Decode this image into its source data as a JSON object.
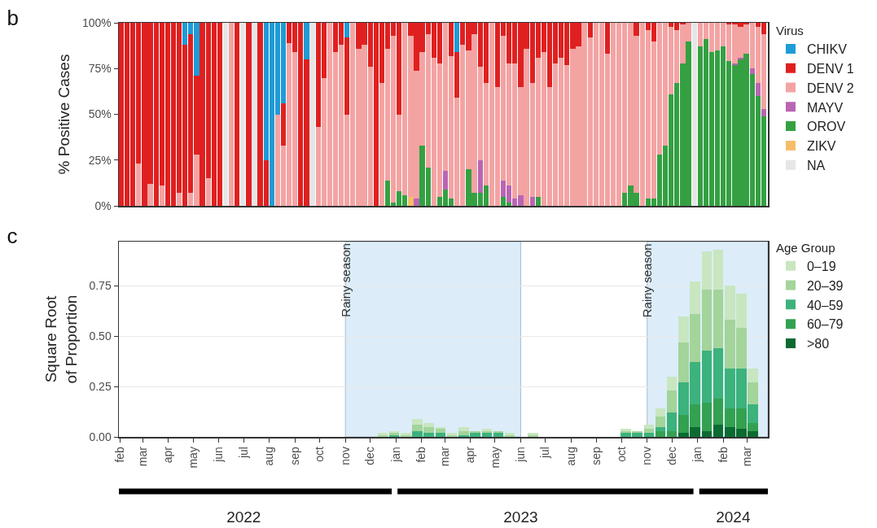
{
  "chart_data": [
    {
      "type": "bar",
      "title": "b",
      "ylabel": "% Positive Cases",
      "legend_title": "Virus",
      "stacked": true,
      "legend": "right",
      "grid": false,
      "tick_labels": "y",
      "xlim": [
        "2022-01-31",
        "2024-03-26"
      ],
      "ylim": [
        0,
        100
      ],
      "yticks": [
        {
          "value": 0,
          "label": "0%"
        },
        {
          "value": 25,
          "label": "25%"
        },
        {
          "value": 50,
          "label": "50%"
        },
        {
          "value": 75,
          "label": "75%"
        },
        {
          "value": 100,
          "label": "100%"
        }
      ],
      "x": [
        "2022-02-03",
        "2022-02-10",
        "2022-02-17",
        "2022-02-24",
        "2022-03-03",
        "2022-03-10",
        "2022-03-17",
        "2022-03-24",
        "2022-03-31",
        "2022-04-07",
        "2022-04-14",
        "2022-04-21",
        "2022-04-28",
        "2022-05-05",
        "2022-05-12",
        "2022-05-19",
        "2022-05-26",
        "2022-06-02",
        "2022-06-09",
        "2022-06-16",
        "2022-06-23",
        "2022-06-30",
        "2022-07-07",
        "2022-07-14",
        "2022-07-21",
        "2022-07-28",
        "2022-08-04",
        "2022-08-11",
        "2022-08-18",
        "2022-08-25",
        "2022-09-01",
        "2022-09-08",
        "2022-09-15",
        "2022-09-22",
        "2022-09-29",
        "2022-10-06",
        "2022-10-13",
        "2022-10-20",
        "2022-10-27",
        "2022-11-03",
        "2022-11-10",
        "2022-11-17",
        "2022-11-24",
        "2022-12-01",
        "2022-12-08",
        "2022-12-15",
        "2022-12-22",
        "2022-12-29",
        "2023-01-05",
        "2023-01-12",
        "2023-01-19",
        "2023-01-26",
        "2023-02-02",
        "2023-02-09",
        "2023-02-16",
        "2023-02-23",
        "2023-03-02",
        "2023-03-09",
        "2023-03-16",
        "2023-03-23",
        "2023-03-30",
        "2023-04-06",
        "2023-04-13",
        "2023-04-20",
        "2023-04-27",
        "2023-05-04",
        "2023-05-11",
        "2023-05-18",
        "2023-05-25",
        "2023-06-01",
        "2023-06-08",
        "2023-06-15",
        "2023-06-22",
        "2023-06-29",
        "2023-07-06",
        "2023-07-13",
        "2023-07-20",
        "2023-07-27",
        "2023-08-03",
        "2023-08-10",
        "2023-08-17",
        "2023-08-24",
        "2023-08-31",
        "2023-09-07",
        "2023-09-14",
        "2023-09-21",
        "2023-09-28",
        "2023-10-05",
        "2023-10-12",
        "2023-10-19",
        "2023-10-26",
        "2023-11-02",
        "2023-11-09",
        "2023-11-16",
        "2023-11-23",
        "2023-11-30",
        "2023-12-07",
        "2023-12-14",
        "2023-12-21",
        "2023-12-28",
        "2024-01-04",
        "2024-01-11",
        "2024-01-18",
        "2024-01-25",
        "2024-02-01",
        "2024-02-08",
        "2024-02-15",
        "2024-02-22",
        "2024-02-29",
        "2024-03-07",
        "2024-03-14",
        "2024-03-21"
      ],
      "series": [
        {
          "name": "NA",
          "color": "#e6e6e6",
          "values": [
            0,
            0,
            0,
            0,
            0,
            0,
            0,
            0,
            0,
            0,
            0,
            0,
            0,
            0,
            0,
            0,
            0,
            0,
            100,
            0,
            0,
            100,
            0,
            100,
            0,
            0,
            0,
            0,
            0,
            0,
            0,
            0,
            0,
            100,
            0,
            0,
            0,
            0,
            0,
            0,
            0,
            0,
            0,
            0,
            0,
            0,
            0,
            0,
            0,
            0,
            0,
            0,
            0,
            0,
            0,
            0,
            0,
            0,
            0,
            0,
            0,
            0,
            0,
            0,
            0,
            0,
            0,
            0,
            0,
            0,
            0,
            0,
            0,
            0,
            0,
            0,
            0,
            0,
            0,
            0,
            0,
            0,
            0,
            0,
            0,
            0,
            0,
            0,
            0,
            0,
            0,
            0,
            0,
            0,
            0,
            0,
            0,
            0,
            0,
            100,
            0,
            0,
            0,
            0,
            0,
            0,
            0,
            0,
            0,
            0,
            0,
            0
          ]
        },
        {
          "name": "ZIKV",
          "color": "#f5bd6b",
          "values": [
            0,
            0,
            0,
            0,
            0,
            0,
            0,
            0,
            0,
            0,
            0,
            0,
            0,
            0,
            0,
            0,
            0,
            0,
            0,
            0,
            0,
            0,
            0,
            0,
            0,
            0,
            0,
            0,
            0,
            0,
            0,
            0,
            0,
            0,
            0,
            0,
            0,
            0,
            0,
            0,
            0,
            0,
            0,
            0,
            0,
            0,
            0,
            0,
            0,
            0,
            5,
            0,
            0,
            0,
            0,
            0,
            0,
            0,
            0,
            0,
            0,
            0,
            0,
            0,
            0,
            0,
            0,
            0,
            0,
            0,
            0,
            0,
            0,
            0,
            0,
            0,
            0,
            0,
            0,
            0,
            0,
            0,
            0,
            0,
            0,
            0,
            0,
            0,
            0,
            0,
            0,
            0,
            0,
            0,
            0,
            0,
            0,
            0,
            0,
            0,
            0,
            0,
            0,
            0,
            0,
            0,
            0,
            0,
            0,
            0,
            0,
            0
          ]
        },
        {
          "name": "OROV",
          "color": "#34a042",
          "values": [
            0,
            0,
            0,
            0,
            0,
            0,
            0,
            0,
            0,
            0,
            0,
            0,
            0,
            0,
            0,
            0,
            0,
            0,
            0,
            0,
            0,
            0,
            0,
            0,
            0,
            0,
            0,
            0,
            0,
            0,
            0,
            0,
            0,
            0,
            0,
            0,
            0,
            0,
            0,
            0,
            0,
            0,
            0,
            0,
            0,
            0,
            14,
            2,
            8,
            6,
            0,
            0,
            33,
            21,
            0,
            5,
            9,
            4,
            0,
            0,
            20,
            7,
            7,
            11,
            0,
            0,
            5,
            2,
            0,
            0,
            0,
            0,
            5,
            0,
            0,
            0,
            0,
            0,
            0,
            0,
            0,
            0,
            0,
            0,
            0,
            0,
            0,
            7,
            11,
            7,
            0,
            4,
            4,
            28,
            33,
            61,
            67,
            78,
            90,
            0,
            87,
            91,
            84,
            85,
            87,
            79,
            77,
            80,
            83,
            72,
            60,
            49
          ]
        },
        {
          "name": "MAYV",
          "color": "#b965b3",
          "values": [
            0,
            0,
            0,
            0,
            0,
            0,
            0,
            0,
            0,
            0,
            0,
            0,
            0,
            0,
            0,
            0,
            0,
            0,
            0,
            0,
            0,
            0,
            0,
            0,
            0,
            0,
            0,
            0,
            0,
            0,
            0,
            0,
            0,
            0,
            0,
            0,
            0,
            0,
            0,
            0,
            0,
            0,
            0,
            0,
            0,
            0,
            0,
            0,
            0,
            0,
            0,
            4,
            0,
            0,
            0,
            0,
            10,
            0,
            0,
            0,
            0,
            0,
            18,
            0,
            0,
            0,
            9,
            9,
            4,
            6,
            0,
            5,
            0,
            0,
            0,
            0,
            0,
            0,
            0,
            0,
            0,
            0,
            0,
            0,
            0,
            0,
            0,
            0,
            0,
            0,
            0,
            0,
            0,
            0,
            0,
            0,
            0,
            0,
            0,
            0,
            0,
            0,
            0,
            0,
            0,
            0,
            1,
            1,
            0,
            3,
            7,
            4
          ]
        },
        {
          "name": "DENV 2",
          "color": "#f4a3a3",
          "values": [
            0,
            0,
            0,
            23,
            0,
            12,
            0,
            11,
            0,
            0,
            7,
            0,
            7,
            28,
            0,
            15,
            0,
            0,
            0,
            100,
            0,
            0,
            0,
            0,
            0,
            0,
            0,
            50,
            33,
            89,
            84,
            0,
            0,
            0,
            43,
            70,
            100,
            84,
            88,
            50,
            100,
            86,
            88,
            76,
            0,
            67,
            72,
            91,
            42,
            94,
            88,
            70,
            51,
            73,
            81,
            73,
            81,
            78,
            59,
            88,
            65,
            87,
            51,
            56,
            100,
            65,
            79,
            67,
            74,
            59,
            86,
            62,
            76,
            84,
            65,
            78,
            81,
            77,
            86,
            87,
            100,
            92,
            100,
            100,
            83,
            100,
            100,
            93,
            89,
            86,
            100,
            92,
            86,
            72,
            67,
            37,
            29,
            21,
            10,
            0,
            13,
            9,
            16,
            15,
            13,
            20,
            21,
            17,
            16,
            25,
            31,
            41
          ]
        },
        {
          "name": "DENV 1",
          "color": "#e02020",
          "values": [
            100,
            100,
            100,
            77,
            100,
            88,
            100,
            89,
            100,
            100,
            93,
            88,
            87,
            43,
            100,
            85,
            100,
            100,
            0,
            0,
            100,
            0,
            100,
            0,
            100,
            25,
            0,
            0,
            23,
            11,
            16,
            100,
            80,
            0,
            57,
            30,
            0,
            16,
            12,
            42,
            0,
            14,
            12,
            24,
            100,
            33,
            14,
            7,
            50,
            0,
            7,
            26,
            16,
            6,
            19,
            22,
            0,
            18,
            25,
            12,
            15,
            6,
            24,
            33,
            0,
            35,
            7,
            22,
            22,
            35,
            14,
            33,
            19,
            16,
            35,
            22,
            19,
            23,
            14,
            13,
            0,
            8,
            0,
            0,
            17,
            0,
            0,
            0,
            0,
            7,
            0,
            4,
            10,
            0,
            0,
            2,
            4,
            1,
            0,
            0,
            0,
            0,
            0,
            0,
            0,
            1,
            1,
            2,
            1,
            0,
            2,
            6
          ]
        },
        {
          "name": "CHIKV",
          "color": "#1f9bd7",
          "values": [
            0,
            0,
            0,
            0,
            0,
            0,
            0,
            0,
            0,
            0,
            0,
            12,
            6,
            29,
            0,
            0,
            0,
            0,
            0,
            0,
            0,
            0,
            0,
            0,
            0,
            75,
            100,
            50,
            44,
            0,
            0,
            0,
            20,
            0,
            0,
            0,
            0,
            0,
            0,
            8,
            0,
            0,
            0,
            0,
            0,
            0,
            0,
            0,
            0,
            0,
            0,
            0,
            0,
            0,
            0,
            0,
            0,
            0,
            16,
            0,
            0,
            0,
            0,
            0,
            0,
            0,
            0,
            0,
            0,
            0,
            0,
            0,
            0,
            0,
            0,
            0,
            0,
            0,
            0,
            0,
            0,
            0,
            0,
            0,
            0,
            0,
            0,
            0,
            0,
            0,
            0,
            0,
            0,
            0,
            0,
            0,
            0,
            0,
            0,
            0,
            0,
            0,
            0,
            0,
            0,
            0,
            0,
            0,
            0,
            0,
            0,
            0
          ]
        }
      ]
    },
    {
      "type": "bar",
      "title": "c",
      "ylabel": "Square Root\nof Proportion",
      "legend_title": "Age Group",
      "stacked": true,
      "legend": "right",
      "grid": "y",
      "xlim": [
        "2022-01-31",
        "2024-03-26"
      ],
      "ylim": [
        0,
        0.97
      ],
      "yticks": [
        {
          "value": 0,
          "label": "0.00"
        },
        {
          "value": 0.25,
          "label": "0.25"
        },
        {
          "value": 0.5,
          "label": "0.50"
        },
        {
          "value": 0.75,
          "label": "0.75"
        }
      ],
      "xticks": [
        {
          "value": "2022-02-01",
          "label": "feb"
        },
        {
          "value": "2022-03-01",
          "label": "mar"
        },
        {
          "value": "2022-04-01",
          "label": "apr"
        },
        {
          "value": "2022-05-01",
          "label": "may"
        },
        {
          "value": "2022-06-01",
          "label": "jun"
        },
        {
          "value": "2022-07-01",
          "label": "jul"
        },
        {
          "value": "2022-08-01",
          "label": "aug"
        },
        {
          "value": "2022-09-01",
          "label": "sep"
        },
        {
          "value": "2022-10-01",
          "label": "oct"
        },
        {
          "value": "2022-11-01",
          "label": "nov"
        },
        {
          "value": "2022-12-01",
          "label": "dec"
        },
        {
          "value": "2023-01-01",
          "label": "jan"
        },
        {
          "value": "2023-02-01",
          "label": "feb"
        },
        {
          "value": "2023-03-01",
          "label": "mar"
        },
        {
          "value": "2023-04-01",
          "label": "apr"
        },
        {
          "value": "2023-05-01",
          "label": "may"
        },
        {
          "value": "2023-06-01",
          "label": "jun"
        },
        {
          "value": "2023-07-01",
          "label": "jul"
        },
        {
          "value": "2023-08-01",
          "label": "aug"
        },
        {
          "value": "2023-09-01",
          "label": "sep"
        },
        {
          "value": "2023-10-01",
          "label": "oct"
        },
        {
          "value": "2023-11-01",
          "label": "nov"
        },
        {
          "value": "2023-12-01",
          "label": "dec"
        },
        {
          "value": "2024-01-01",
          "label": "jan"
        },
        {
          "value": "2024-02-01",
          "label": "feb"
        },
        {
          "value": "2024-03-01",
          "label": "mar"
        }
      ],
      "x2lim": [
        "2022-01-31",
        "2024-03-26"
      ],
      "x2ticks": [
        {
          "value": "2022-07-01",
          "label": "2022"
        },
        {
          "value": "2023-06-01",
          "label": "2023"
        },
        {
          "value": "2024-02-13",
          "label": "2024"
        }
      ],
      "bands": [
        {
          "axis": "x",
          "from": "2022-11-01",
          "to": "2023-06-01",
          "label": "Rainy season",
          "color": "#dcedf9"
        },
        {
          "axis": "x",
          "from": "2023-11-01",
          "to": "2024-03-26",
          "label": "Rainy season",
          "color": "#dcedf9"
        }
      ],
      "x": [
        "2022-12-16",
        "2022-12-30",
        "2023-01-13",
        "2023-01-27",
        "2023-02-10",
        "2023-02-24",
        "2023-03-10",
        "2023-03-24",
        "2023-04-07",
        "2023-04-21",
        "2023-05-05",
        "2023-05-19",
        "2023-06-16",
        "2023-10-06",
        "2023-10-20",
        "2023-11-03",
        "2023-11-17",
        "2023-12-01",
        "2023-12-15",
        "2023-12-29",
        "2024-01-12",
        "2024-01-26",
        "2024-02-09",
        "2024-02-23",
        "2024-03-08"
      ],
      "series": [
        {
          "name": ">80",
          "color": "#0b6b30",
          "values": [
            0,
            0,
            0,
            0,
            0,
            0,
            0,
            0,
            0,
            0,
            0,
            0,
            0,
            0,
            0,
            0,
            0,
            0,
            0.02,
            0.05,
            0.03,
            0.06,
            0.05,
            0.04,
            0.03
          ]
        },
        {
          "name": "60–79",
          "color": "#33a150",
          "values": [
            0,
            0,
            0,
            0,
            0,
            0,
            0,
            0,
            0,
            0,
            0,
            0,
            0,
            0,
            0,
            0,
            0.03,
            0.03,
            0.09,
            0.11,
            0.14,
            0.13,
            0.09,
            0.1,
            0.04
          ]
        },
        {
          "name": "40–59",
          "color": "#3cb27c",
          "values": [
            0,
            0.01,
            0,
            0.03,
            0.02,
            0.02,
            0,
            0.01,
            0.02,
            0.02,
            0.02,
            0,
            0,
            0.02,
            0.02,
            0.02,
            0.02,
            0.09,
            0.16,
            0.21,
            0.26,
            0.25,
            0.2,
            0.2,
            0.09
          ]
        },
        {
          "name": "20–39",
          "color": "#a3d49a",
          "values": [
            0.01,
            0.01,
            0.01,
            0.03,
            0.03,
            0.02,
            0.01,
            0.02,
            0.01,
            0.01,
            0.01,
            0.01,
            0.01,
            0.01,
            0.01,
            0.02,
            0.05,
            0.11,
            0.2,
            0.24,
            0.3,
            0.29,
            0.24,
            0.2,
            0.11
          ]
        },
        {
          "name": "0–19",
          "color": "#c8e6c0",
          "values": [
            0.01,
            0.01,
            0.01,
            0.03,
            0.02,
            0.01,
            0.01,
            0.02,
            0,
            0.01,
            0,
            0.01,
            0.01,
            0.01,
            0,
            0.02,
            0.04,
            0.07,
            0.13,
            0.16,
            0.19,
            0.2,
            0.17,
            0.17,
            0.07
          ]
        }
      ]
    }
  ]
}
